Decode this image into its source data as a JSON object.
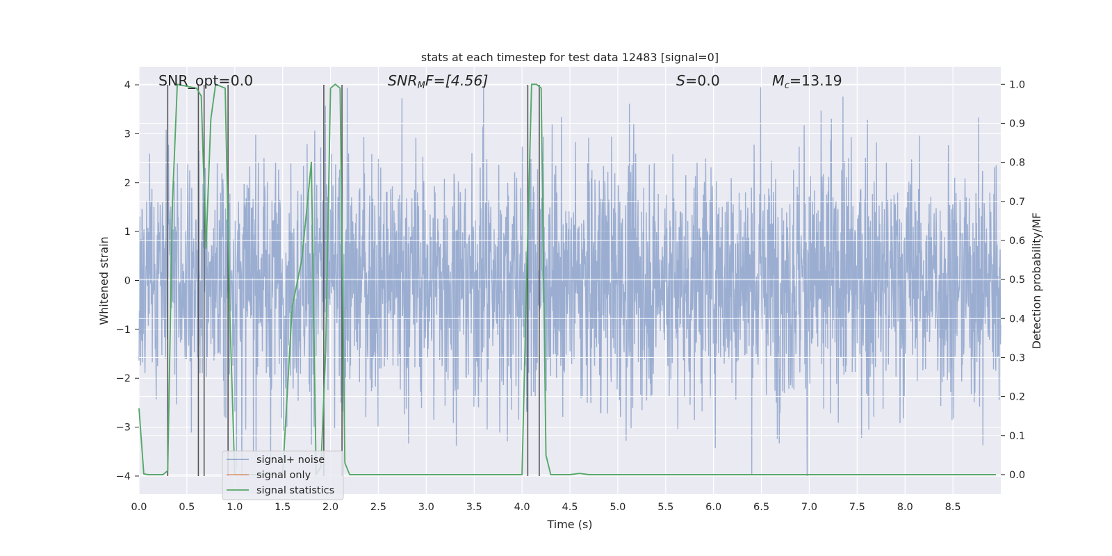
{
  "chart_data": {
    "type": "line",
    "title": "stats at each timestep for test data 12483 [signal=0]",
    "xlabel": "Time (s)",
    "ylabel_left": "Whitened strain",
    "ylabel_right": "Detection probability/MF",
    "xlim": [
      0,
      9.0
    ],
    "ylim_left": [
      -4.37,
      4.37
    ],
    "ylim_right": [
      -0.05,
      1.045
    ],
    "x_ticks": [
      "0.0",
      "0.5",
      "1.0",
      "1.5",
      "2.0",
      "2.5",
      "3.0",
      "3.5",
      "4.0",
      "4.5",
      "5.0",
      "5.5",
      "6.0",
      "6.5",
      "7.0",
      "7.5",
      "8.0",
      "8.5"
    ],
    "y_ticks_left": [
      "4",
      "3",
      "2",
      "1",
      "0",
      "−1",
      "−2",
      "−3",
      "−4"
    ],
    "y_ticks_right": [
      "1.0",
      "0.9",
      "0.8",
      "0.7",
      "0.6",
      "0.5",
      "0.4",
      "0.3",
      "0.2",
      "0.1",
      "0.0"
    ],
    "grid": true,
    "legend_position": "lower-left",
    "legend": [
      "signal+ noise",
      "signal only",
      "signal statistics"
    ],
    "annotations": {
      "snr_opt": "SNR_opt=0.0",
      "snr_mf_name": "SNR",
      "snr_mf_sub": "M",
      "snr_mf_tail": "F=[4.56]",
      "s_name": "S",
      "s_value": "=0.0",
      "mc_name": "M",
      "mc_sub": "c",
      "mc_value": "=13.19"
    },
    "series": [
      {
        "name": "signal+ noise",
        "axis": "left",
        "color": "#4c72b0",
        "description_note": "dense whitened noise, amplitude mostly within about ±2.5, peaks up to about ±4",
        "noise_envelope": 2.3
      },
      {
        "name": "signal only",
        "axis": "left",
        "color": "#dd8452",
        "values": []
      },
      {
        "name": "signal statistics",
        "axis": "right",
        "color": "#55a868",
        "x": [
          0.0,
          0.05,
          0.1,
          0.25,
          0.3,
          0.35,
          0.4,
          0.6,
          0.65,
          0.7,
          0.75,
          0.8,
          0.9,
          0.95,
          1.0,
          1.1,
          1.2,
          1.3,
          1.4,
          1.5,
          1.6,
          1.7,
          1.8,
          1.85,
          1.9,
          1.95,
          2.0,
          2.05,
          2.1,
          2.15,
          2.2,
          2.3,
          2.5,
          3.0,
          3.5,
          4.0,
          4.05,
          4.1,
          4.15,
          4.2,
          4.25,
          4.3,
          4.5,
          4.6,
          4.7,
          5.0,
          6.0,
          7.0,
          8.0,
          8.5,
          8.95
        ],
        "values": [
          0.17,
          0.002,
          0.0,
          0.0,
          0.01,
          0.7,
          1.0,
          0.99,
          0.97,
          0.58,
          0.91,
          1.0,
          0.99,
          0.4,
          0.0,
          0.0,
          0.0,
          0.0,
          0.0,
          0.0,
          0.43,
          0.55,
          0.8,
          0.0,
          0.02,
          0.32,
          0.99,
          1.0,
          0.99,
          0.03,
          0.0,
          0.0,
          0.0,
          0.0,
          0.0,
          0.0,
          0.52,
          1.0,
          1.0,
          0.99,
          0.05,
          0.0,
          0.0,
          0.003,
          0.0,
          0.0,
          0.0,
          0.0,
          0.0,
          0.0,
          0.0
        ]
      }
    ],
    "marker_lines_x": [
      0.3,
      0.62,
      0.68,
      0.93,
      1.93,
      2.12,
      4.06,
      4.18
    ],
    "marker_color": "#555555"
  }
}
